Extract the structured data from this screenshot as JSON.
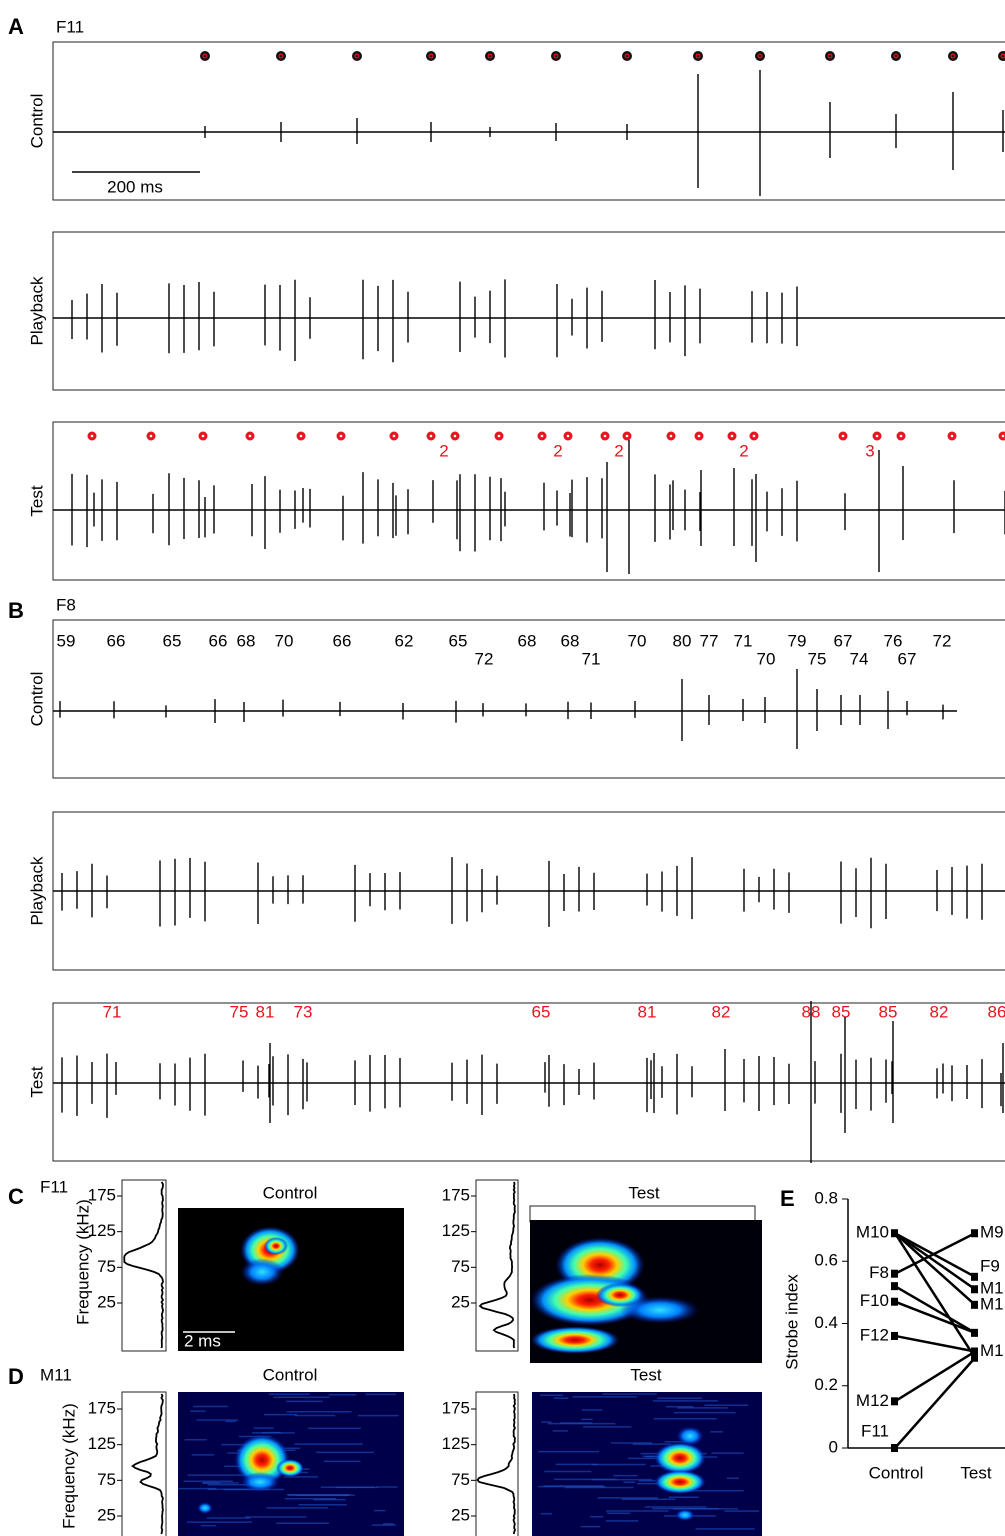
{
  "panel_a": {
    "label": "A",
    "animal": "F11",
    "rows": [
      "Control",
      "Playback",
      "Test"
    ],
    "scale_bar": "200 ms",
    "test_counts": [
      2,
      2,
      2,
      2,
      3
    ]
  },
  "panel_b": {
    "label": "B",
    "animal": "F8",
    "rows": [
      "Control",
      "Playback",
      "Test"
    ],
    "control_numbers_top": [
      59,
      66,
      65,
      66,
      68,
      70,
      66,
      62,
      65,
      68,
      68,
      70,
      80,
      77,
      71,
      79,
      67,
      76,
      72
    ],
    "control_numbers_bottom": [
      72,
      71,
      70,
      75,
      74,
      67
    ],
    "test_numbers": [
      71,
      75,
      81,
      73,
      65,
      81,
      82,
      88,
      85,
      85,
      82,
      86
    ]
  },
  "panel_c": {
    "label": "C",
    "animal": "F11",
    "ylabel": "Frequency (kHz)",
    "yticks": [
      175,
      125,
      75,
      25
    ],
    "titles": [
      "Control",
      "Test"
    ],
    "scale_bar": "2 ms"
  },
  "panel_d": {
    "label": "D",
    "animal": "M11",
    "ylabel": "Frequency (kHz)",
    "yticks": [
      175,
      125,
      75,
      25
    ],
    "titles": [
      "Control",
      "Test"
    ]
  },
  "panel_e": {
    "label": "E",
    "type": "line",
    "ylabel": "Strobe index",
    "categories": [
      "Control",
      "Test"
    ],
    "ylim": [
      0,
      0.8
    ],
    "yticks": [
      0,
      0.2,
      0.4,
      0.6,
      0.8
    ],
    "control_values": [
      0.69,
      0.56,
      0.52,
      0.47,
      0.36,
      0.15,
      0
    ],
    "control_labels": [
      "M10",
      "F8",
      null,
      "F10",
      "F12",
      "M12",
      "F11"
    ],
    "test_values": [
      0.69,
      0.55,
      0.51,
      0.46,
      0.37,
      0.31,
      0.29
    ],
    "test_labels": [
      "M9",
      "F9",
      "M1",
      "M1",
      null,
      "M1",
      null
    ]
  }
}
